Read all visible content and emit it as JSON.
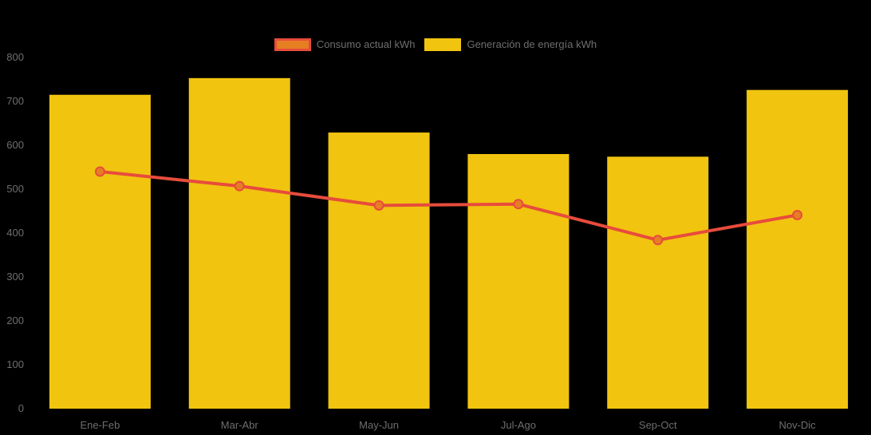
{
  "legend": {
    "items": [
      {
        "label": "Consumo actual kWh",
        "icon": "line-series-swatch",
        "border_color": "#E74C3C",
        "fill_color": "#E67E22"
      },
      {
        "label": "Generación de energía kWh",
        "icon": "bar-series-swatch",
        "border_color": "#F1C40F",
        "fill_color": "#F1C40F"
      }
    ]
  },
  "chart_data": {
    "type": "bar",
    "title": "",
    "xlabel": "",
    "ylabel": "",
    "categories": [
      "Ene-Feb",
      "Mar-Abr",
      "May-Jun",
      "Jul-Ago",
      "Sep-Oct",
      "Nov-Dic"
    ],
    "series": [
      {
        "name": "Generación de energía kWh",
        "type": "bar",
        "color": "#F1C40F",
        "values": [
          715,
          753,
          629,
          580,
          574,
          726
        ]
      },
      {
        "name": "Consumo actual kWh",
        "type": "line",
        "color": "#E74C3C",
        "point_fill": "#E67E22",
        "values": [
          540,
          507,
          463,
          466,
          384,
          441
        ]
      }
    ],
    "ylim": [
      0,
      800
    ],
    "ytick_step": 100,
    "yticks": [
      0,
      100,
      200,
      300,
      400,
      500,
      600,
      700,
      800
    ],
    "grid": false,
    "legend_position": "top-center",
    "background_color": "#000000",
    "axis_text_color": "#6E6E6E"
  }
}
